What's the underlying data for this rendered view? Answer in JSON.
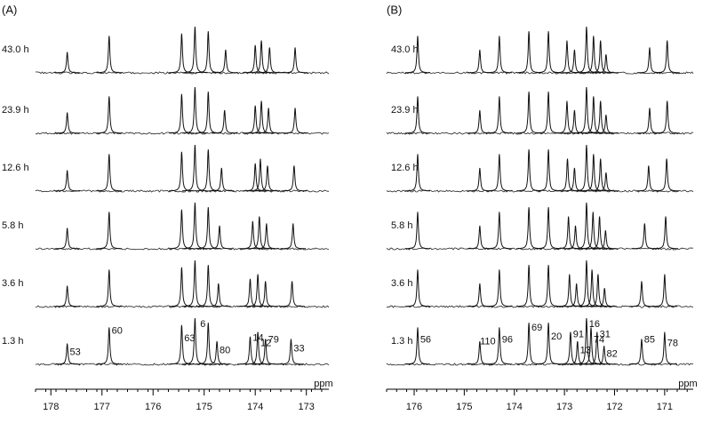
{
  "chart_data": [
    {
      "type": "spectra",
      "title": "(A)",
      "xlabel": "ppm",
      "xlim": [
        178.3,
        172.56
      ],
      "xticks": [
        178,
        177,
        176,
        175,
        174,
        173
      ],
      "heights": [
        0.45,
        0.8,
        0.85,
        1.0,
        0.9,
        0.5,
        0.6,
        0.7,
        0.55,
        0.55
      ],
      "peak_labels": [
        {
          "label": "53",
          "ppm": 177.68
        },
        {
          "label": "60",
          "ppm": 176.86
        },
        {
          "label": "63",
          "ppm": 175.44
        },
        {
          "label": "6",
          "ppm": 175.18
        },
        {
          "label": "80",
          "ppm": 174.75
        },
        {
          "label": "14",
          "ppm": 174.1
        },
        {
          "label": "12",
          "ppm": 173.95
        },
        {
          "label": "79",
          "ppm": 173.8
        },
        {
          "label": "33",
          "ppm": 173.3
        }
      ],
      "series": [
        {
          "name": "1.3 h",
          "values": [
            177.68,
            176.86,
            175.44,
            175.18,
            174.92,
            174.75,
            174.1,
            173.95,
            173.8,
            173.3
          ]
        },
        {
          "name": "3.6 h",
          "values": [
            177.68,
            176.86,
            175.44,
            175.18,
            174.92,
            174.72,
            174.1,
            173.95,
            173.8,
            173.28
          ]
        },
        {
          "name": "5.8 h",
          "values": [
            177.68,
            176.86,
            175.44,
            175.18,
            174.92,
            174.7,
            174.05,
            173.92,
            173.78,
            173.26
          ]
        },
        {
          "name": "12.6 h",
          "values": [
            177.68,
            176.86,
            175.44,
            175.18,
            174.92,
            174.66,
            174.0,
            173.9,
            173.76,
            173.24
          ]
        },
        {
          "name": "23.9 h",
          "values": [
            177.68,
            176.86,
            175.44,
            175.18,
            174.92,
            174.6,
            174.0,
            173.88,
            173.74,
            173.22
          ]
        },
        {
          "name": "43.0 h",
          "values": [
            177.68,
            176.86,
            175.44,
            175.18,
            174.92,
            174.58,
            174.0,
            173.88,
            173.72,
            173.22
          ]
        }
      ]
    },
    {
      "type": "spectra",
      "title": "(B)",
      "xlabel": "ppm",
      "xlim": [
        176.55,
        170.43
      ],
      "xticks": [
        176,
        175,
        174,
        173,
        172,
        171
      ],
      "heights": [
        0.8,
        0.5,
        0.8,
        0.9,
        0.9,
        0.7,
        0.5,
        1.0,
        0.8,
        0.7,
        0.4,
        0.55,
        0.7
      ],
      "peak_labels": [
        {
          "label": "56",
          "ppm": 175.93
        },
        {
          "label": "110",
          "ppm": 174.69
        },
        {
          "label": "96",
          "ppm": 174.3
        },
        {
          "label": "69",
          "ppm": 173.71
        },
        {
          "label": "20",
          "ppm": 173.32
        },
        {
          "label": "91",
          "ppm": 172.88
        },
        {
          "label": "13",
          "ppm": 172.74
        },
        {
          "label": "16",
          "ppm": 172.56
        },
        {
          "label": "74",
          "ppm": 172.47
        },
        {
          "label": "31",
          "ppm": 172.35
        },
        {
          "label": "82",
          "ppm": 172.21
        },
        {
          "label": "85",
          "ppm": 171.46
        },
        {
          "label": "78",
          "ppm": 171.0
        }
      ],
      "series": [
        {
          "name": "1.3 h",
          "values": [
            175.93,
            174.69,
            174.3,
            173.71,
            173.32,
            172.88,
            172.74,
            172.56,
            172.47,
            172.35,
            172.21,
            171.46,
            171.0
          ]
        },
        {
          "name": "3.6 h",
          "values": [
            175.93,
            174.69,
            174.3,
            173.71,
            173.32,
            172.9,
            172.76,
            172.56,
            172.45,
            172.33,
            172.2,
            171.46,
            171.0
          ]
        },
        {
          "name": "5.8 h",
          "values": [
            175.93,
            174.69,
            174.3,
            173.71,
            173.32,
            172.92,
            172.78,
            172.56,
            172.43,
            172.3,
            172.18,
            171.4,
            170.98
          ]
        },
        {
          "name": "12.6 h",
          "values": [
            175.93,
            174.69,
            174.3,
            173.71,
            173.32,
            172.94,
            172.8,
            172.56,
            172.42,
            172.28,
            172.17,
            171.32,
            170.96
          ]
        },
        {
          "name": "23.9 h",
          "values": [
            175.93,
            174.69,
            174.3,
            173.71,
            173.32,
            172.95,
            172.8,
            172.56,
            172.42,
            172.28,
            172.17,
            171.3,
            170.95
          ]
        },
        {
          "name": "43.0 h",
          "values": [
            175.93,
            174.69,
            174.3,
            173.71,
            173.32,
            172.95,
            172.8,
            172.56,
            172.42,
            172.28,
            172.17,
            171.3,
            170.95
          ]
        }
      ]
    }
  ]
}
